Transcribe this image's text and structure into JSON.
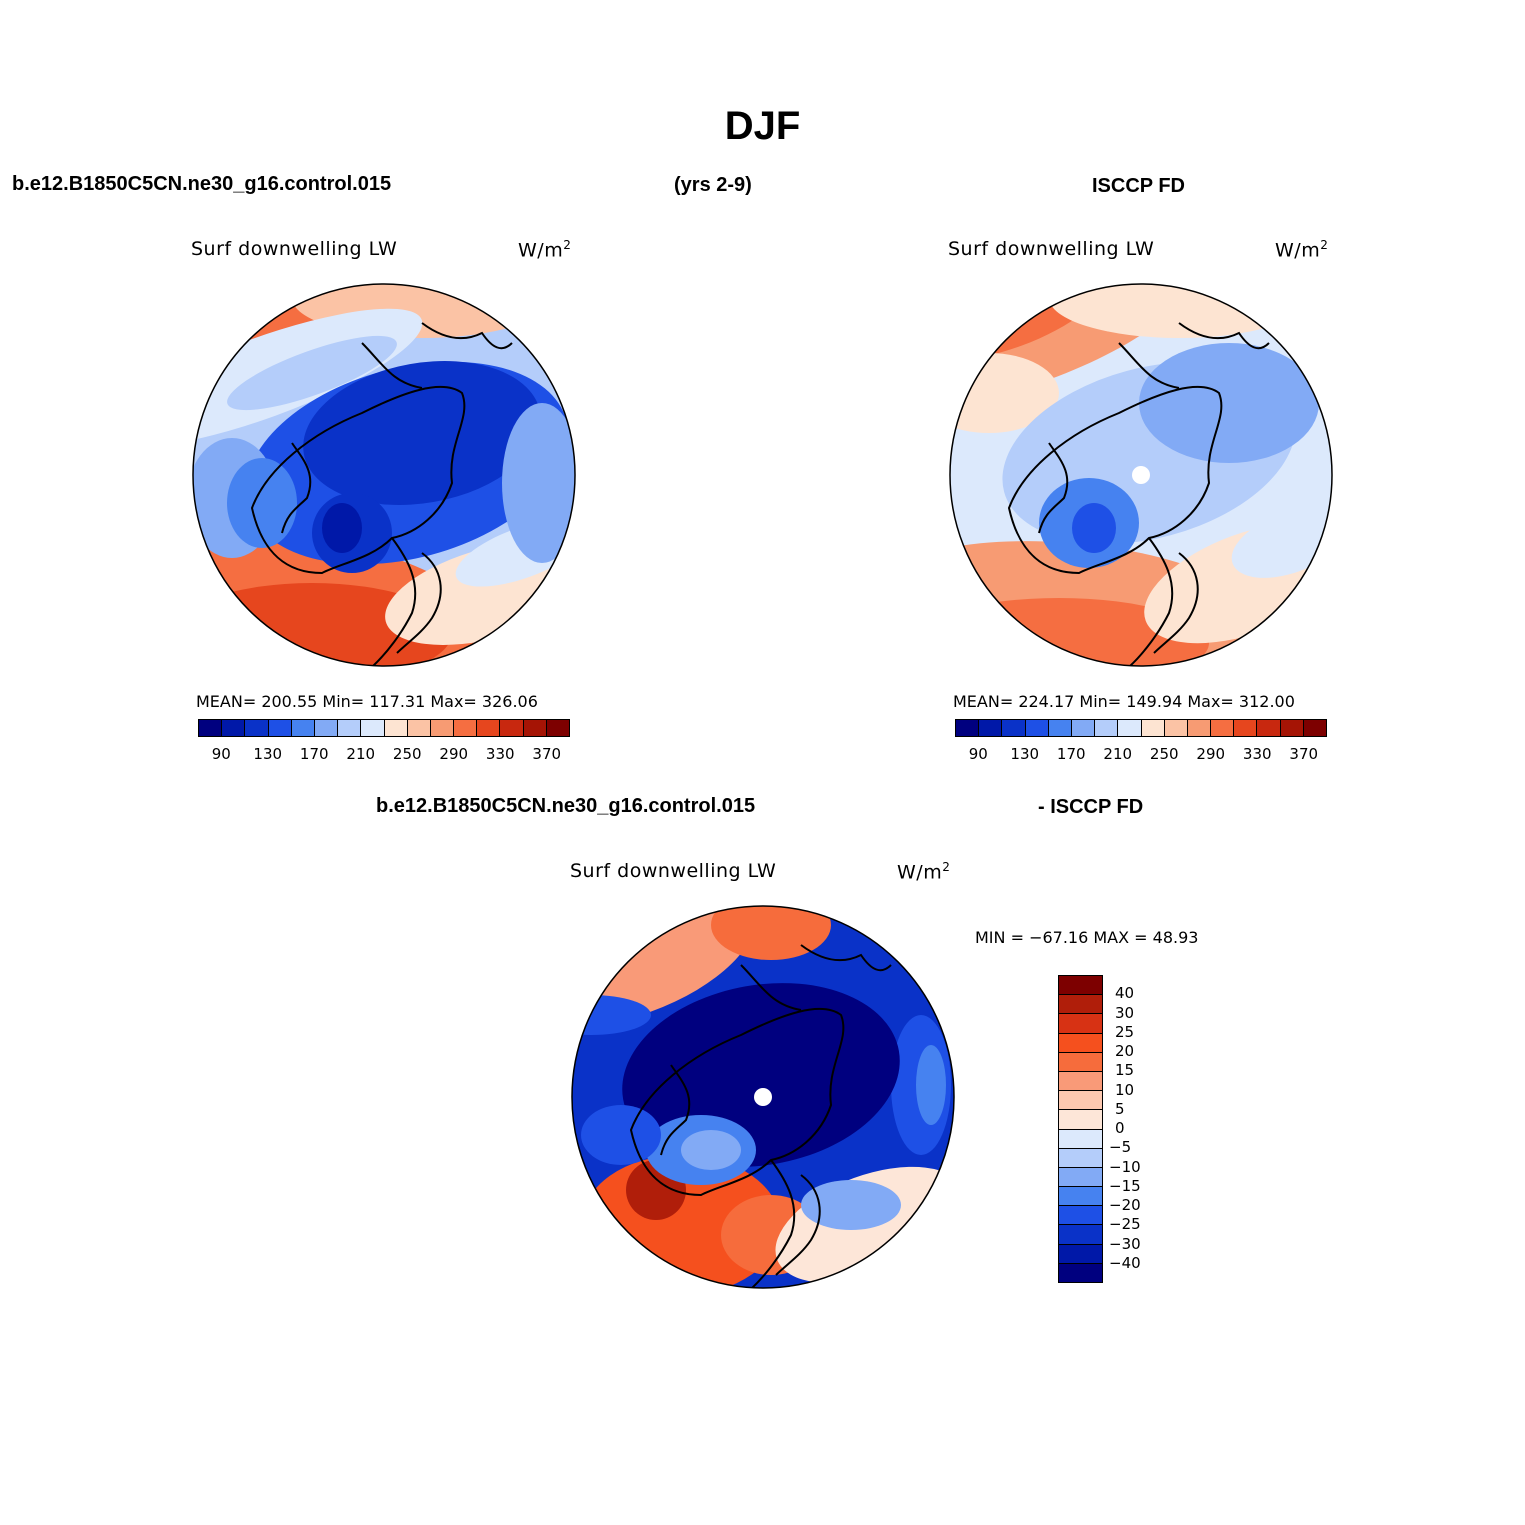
{
  "title": "DJF",
  "top": {
    "left_label": "b.e12.B1850C5CN.ne30_g16.control.015",
    "center_label": "(yrs 2-9)",
    "right_label": "ISCCP FD"
  },
  "panel1": {
    "variable": "Surf downwelling LW",
    "units": "W/m",
    "units_exp": "2",
    "stats": "MEAN= 200.55   Min= 117.31   Max= 326.06"
  },
  "panel2": {
    "variable": "Surf downwelling LW",
    "units": "W/m",
    "units_exp": "2",
    "stats": "MEAN= 224.17   Min= 149.94   Max= 312.00"
  },
  "diff": {
    "left_label": "b.e12.B1850C5CN.ne30_g16.control.015",
    "right_label": "- ISCCP FD",
    "variable": "Surf downwelling LW",
    "units": "W/m",
    "units_exp": "2",
    "minmax": "MIN = −67.16 MAX =   48.93"
  },
  "colorbar_abs": {
    "colors": [
      "#00007f",
      "#0018a8",
      "#0a32c8",
      "#1e50e6",
      "#4682f0",
      "#82aaf5",
      "#b4cdfa",
      "#dce9fc",
      "#fde4d2",
      "#fbc3a5",
      "#f79b73",
      "#f56e41",
      "#e6461e",
      "#c8280f",
      "#a51405",
      "#7d0000"
    ],
    "tick_labels": [
      "90",
      "130",
      "170",
      "210",
      "250",
      "290",
      "330",
      "370"
    ]
  },
  "colorbar_diff": {
    "colors": [
      "#7d0000",
      "#b01e0a",
      "#d73214",
      "#f5501e",
      "#f66c3c",
      "#f99a78",
      "#fcc8b0",
      "#fde6d8",
      "#dce9fc",
      "#b4cdfa",
      "#82aaf5",
      "#4682f0",
      "#1e50e6",
      "#0a32c8",
      "#0018a8",
      "#00007f"
    ],
    "tick_labels": [
      "40",
      "30",
      "25",
      "20",
      "15",
      "10",
      "5",
      "0",
      "−5",
      "−10",
      "−15",
      "−20",
      "−25",
      "−30",
      "−40"
    ]
  }
}
